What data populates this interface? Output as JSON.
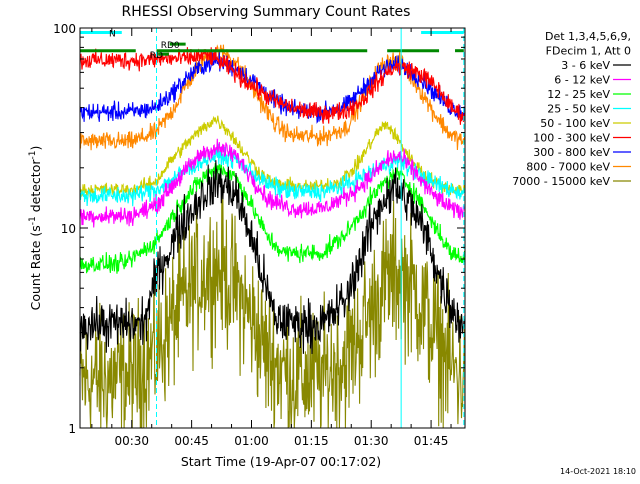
{
  "chart_data": {
    "type": "line",
    "title": "RHESSI Observing Summary Count Rates",
    "xlabel": "Start Time (19-Apr-07 00:17:02)",
    "ylabel": "Count Rate (s",
    "ylabel_sup": "-1",
    "ylabel_rest": " detector",
    "ylabel_sup2": "-1",
    "ylabel_end": ")",
    "footer": "14-Oct-2021 18:10",
    "y_scale": "log",
    "ylim": [
      1,
      100
    ],
    "y_ticks": [
      {
        "value": 1,
        "label": "1"
      },
      {
        "value": 10,
        "label": "10"
      },
      {
        "value": 100,
        "label": "100"
      }
    ],
    "xlim": [
      17.03,
      113.5
    ],
    "x_ticks": [
      {
        "value": 30,
        "label": "00:30"
      },
      {
        "value": 45,
        "label": "00:45"
      },
      {
        "value": 60,
        "label": "01:00"
      },
      {
        "value": 75,
        "label": "01:15"
      },
      {
        "value": 90,
        "label": "01:30"
      },
      {
        "value": 105,
        "label": "01:45"
      }
    ],
    "legend_header": [
      "Det 1,3,4,5,6,9,",
      "FDecim 1, Att 0"
    ],
    "legend_placement": "right",
    "series": [
      {
        "name": "3 - 6 keV",
        "color": "#000000",
        "noise": 0.1,
        "points": [
          [
            17.0,
            3.3
          ],
          [
            25,
            3.3
          ],
          [
            33,
            3.3
          ],
          [
            36,
            5.6
          ],
          [
            42,
            10
          ],
          [
            48,
            15
          ],
          [
            52,
            17
          ],
          [
            56,
            15
          ],
          [
            60,
            9
          ],
          [
            63,
            5.5
          ],
          [
            66,
            3.5
          ],
          [
            72,
            3.3
          ],
          [
            78,
            3.3
          ],
          [
            84,
            4.5
          ],
          [
            89,
            9
          ],
          [
            93,
            14
          ],
          [
            96,
            16
          ],
          [
            100,
            13
          ],
          [
            104,
            9
          ],
          [
            108,
            5
          ],
          [
            112,
            3.4
          ],
          [
            113.5,
            3.3
          ]
        ]
      },
      {
        "name": "6 - 12 keV",
        "color": "#ff00ff",
        "noise": 0.04,
        "points": [
          [
            17.0,
            11.5
          ],
          [
            30,
            11.5
          ],
          [
            36,
            13
          ],
          [
            42,
            18
          ],
          [
            48,
            24
          ],
          [
            52,
            25
          ],
          [
            56,
            23
          ],
          [
            60,
            18
          ],
          [
            64,
            14
          ],
          [
            70,
            12.5
          ],
          [
            78,
            12.5
          ],
          [
            84,
            14.5
          ],
          [
            90,
            18
          ],
          [
            94,
            22
          ],
          [
            97,
            23
          ],
          [
            101,
            19
          ],
          [
            105,
            15
          ],
          [
            110,
            12.5
          ],
          [
            113.5,
            12
          ]
        ]
      },
      {
        "name": "12 - 25 keV",
        "color": "#00ff00",
        "noise": 0.04,
        "points": [
          [
            17.0,
            6.6
          ],
          [
            28,
            6.6
          ],
          [
            36,
            8.5
          ],
          [
            42,
            13
          ],
          [
            48,
            18
          ],
          [
            52,
            20
          ],
          [
            56,
            18
          ],
          [
            60,
            13
          ],
          [
            64,
            9
          ],
          [
            68,
            7.5
          ],
          [
            78,
            7.5
          ],
          [
            84,
            9.5
          ],
          [
            90,
            14
          ],
          [
            94,
            17.5
          ],
          [
            97,
            18.5
          ],
          [
            101,
            15
          ],
          [
            105,
            11
          ],
          [
            110,
            7.5
          ],
          [
            113.5,
            7
          ]
        ]
      },
      {
        "name": "25 - 50 keV",
        "color": "#00ffff",
        "noise": 0.04,
        "points": [
          [
            17.0,
            14.5
          ],
          [
            30,
            14.5
          ],
          [
            36,
            15.5
          ],
          [
            42,
            18.5
          ],
          [
            48,
            22
          ],
          [
            52,
            23
          ],
          [
            56,
            22
          ],
          [
            60,
            19
          ],
          [
            64,
            16.5
          ],
          [
            70,
            15.2
          ],
          [
            78,
            15.2
          ],
          [
            84,
            16.5
          ],
          [
            90,
            19
          ],
          [
            94,
            21
          ],
          [
            97,
            21.5
          ],
          [
            101,
            19
          ],
          [
            105,
            17
          ],
          [
            110,
            15.5
          ],
          [
            113.5,
            15
          ]
        ]
      },
      {
        "name": "50 - 100 keV",
        "color": "#cccc00",
        "noise": 0.03,
        "points": [
          [
            17.0,
            15.5
          ],
          [
            30,
            15.5
          ],
          [
            36,
            17
          ],
          [
            40,
            22
          ],
          [
            45,
            28
          ],
          [
            49,
            33
          ],
          [
            51,
            35
          ],
          [
            54,
            31
          ],
          [
            58,
            24
          ],
          [
            62,
            19
          ],
          [
            66,
            16.5
          ],
          [
            76,
            16
          ],
          [
            82,
            17
          ],
          [
            86,
            20
          ],
          [
            89,
            25
          ],
          [
            92,
            31
          ],
          [
            94,
            33
          ],
          [
            96,
            29
          ],
          [
            100,
            22
          ],
          [
            104,
            18
          ],
          [
            108,
            16
          ],
          [
            113.5,
            15.5
          ]
        ]
      },
      {
        "name": "100 - 300 keV",
        "color": "#ff0000",
        "noise": 0.04,
        "points": [
          [
            17.0,
            69
          ],
          [
            30,
            69
          ],
          [
            36,
            69.5
          ],
          [
            39,
            70.5
          ],
          [
            42,
            70
          ],
          [
            45,
            71
          ],
          [
            48,
            73
          ],
          [
            50,
            72
          ],
          [
            52,
            68
          ],
          [
            55,
            62
          ],
          [
            57,
            57
          ],
          [
            60,
            52
          ],
          [
            63,
            47
          ],
          [
            66,
            43
          ],
          [
            70,
            40
          ],
          [
            75,
            38
          ],
          [
            80,
            37.5
          ],
          [
            84,
            39
          ],
          [
            88,
            44
          ],
          [
            91,
            52
          ],
          [
            94,
            60
          ],
          [
            96,
            64
          ],
          [
            99,
            63
          ],
          [
            103,
            58
          ],
          [
            107,
            49
          ],
          [
            110,
            40
          ],
          [
            113.5,
            36
          ]
        ]
      },
      {
        "name": "300 - 800 keV",
        "color": "#0000ff",
        "noise": 0.04,
        "points": [
          [
            17.0,
            38
          ],
          [
            30,
            38
          ],
          [
            36,
            40
          ],
          [
            40,
            47
          ],
          [
            44,
            57
          ],
          [
            48,
            65
          ],
          [
            51,
            68
          ],
          [
            54,
            66
          ],
          [
            58,
            59
          ],
          [
            62,
            51
          ],
          [
            66,
            43
          ],
          [
            70,
            39
          ],
          [
            78,
            38
          ],
          [
            84,
            41
          ],
          [
            88,
            50
          ],
          [
            92,
            60
          ],
          [
            95,
            65
          ],
          [
            98,
            64
          ],
          [
            102,
            57
          ],
          [
            106,
            47
          ],
          [
            110,
            40
          ],
          [
            113.5,
            37
          ]
        ]
      },
      {
        "name": "800 - 7000 keV",
        "color": "#ff8800",
        "noise": 0.04,
        "points": [
          [
            17.0,
            27
          ],
          [
            30,
            27
          ],
          [
            36,
            30
          ],
          [
            40,
            38
          ],
          [
            44,
            53
          ],
          [
            48,
            70
          ],
          [
            51,
            77
          ],
          [
            54,
            74
          ],
          [
            58,
            60
          ],
          [
            62,
            44
          ],
          [
            66,
            33
          ],
          [
            70,
            29
          ],
          [
            78,
            28.5
          ],
          [
            84,
            32
          ],
          [
            88,
            45
          ],
          [
            92,
            63
          ],
          [
            95,
            70
          ],
          [
            98,
            65
          ],
          [
            102,
            50
          ],
          [
            106,
            37
          ],
          [
            110,
            29
          ],
          [
            113.5,
            27
          ]
        ]
      },
      {
        "name": "7000 - 15000 keV",
        "color": "#888800",
        "noise": 0.3,
        "points": [
          [
            17.0,
            1.7
          ],
          [
            30,
            1.8
          ],
          [
            36,
            2.4
          ],
          [
            42,
            4
          ],
          [
            48,
            6
          ],
          [
            52,
            6.2
          ],
          [
            56,
            5
          ],
          [
            60,
            3.5
          ],
          [
            64,
            2.3
          ],
          [
            70,
            1.8
          ],
          [
            78,
            1.8
          ],
          [
            84,
            2.3
          ],
          [
            90,
            3.8
          ],
          [
            94,
            5.5
          ],
          [
            97,
            5.8
          ],
          [
            101,
            4.8
          ],
          [
            105,
            3.2
          ],
          [
            110,
            2
          ],
          [
            113.5,
            1.8
          ]
        ]
      }
    ],
    "status_annotations": [
      {
        "label": "N",
        "color": "#00ffff",
        "y": 95,
        "segments": [
          [
            17.03,
            27.5
          ],
          [
            102.5,
            113.2
          ]
        ]
      },
      {
        "label": "RD0",
        "color": "#008800",
        "y": 83,
        "segments": [
          [
            39.5,
            43.5
          ]
        ]
      },
      {
        "label": "RD",
        "color": "#008800",
        "y": 74,
        "segments": [
          [
            36.6,
            39.3
          ]
        ]
      },
      {
        "label": "",
        "color": "#008800",
        "y": 77,
        "segments": [
          [
            17.03,
            31
          ],
          [
            36.2,
            89
          ],
          [
            94,
            107
          ],
          [
            111,
            113.2
          ]
        ]
      }
    ],
    "vertical_markers": [
      {
        "x": 17.03,
        "color": "#00ffff",
        "style": "dashed"
      },
      {
        "x": 36.2,
        "color": "#00ffff",
        "style": "dashed"
      },
      {
        "x": 97.5,
        "color": "#00ffff",
        "style": "solid"
      },
      {
        "x": 113.2,
        "color": "#00ffff",
        "style": "dashed"
      }
    ]
  }
}
